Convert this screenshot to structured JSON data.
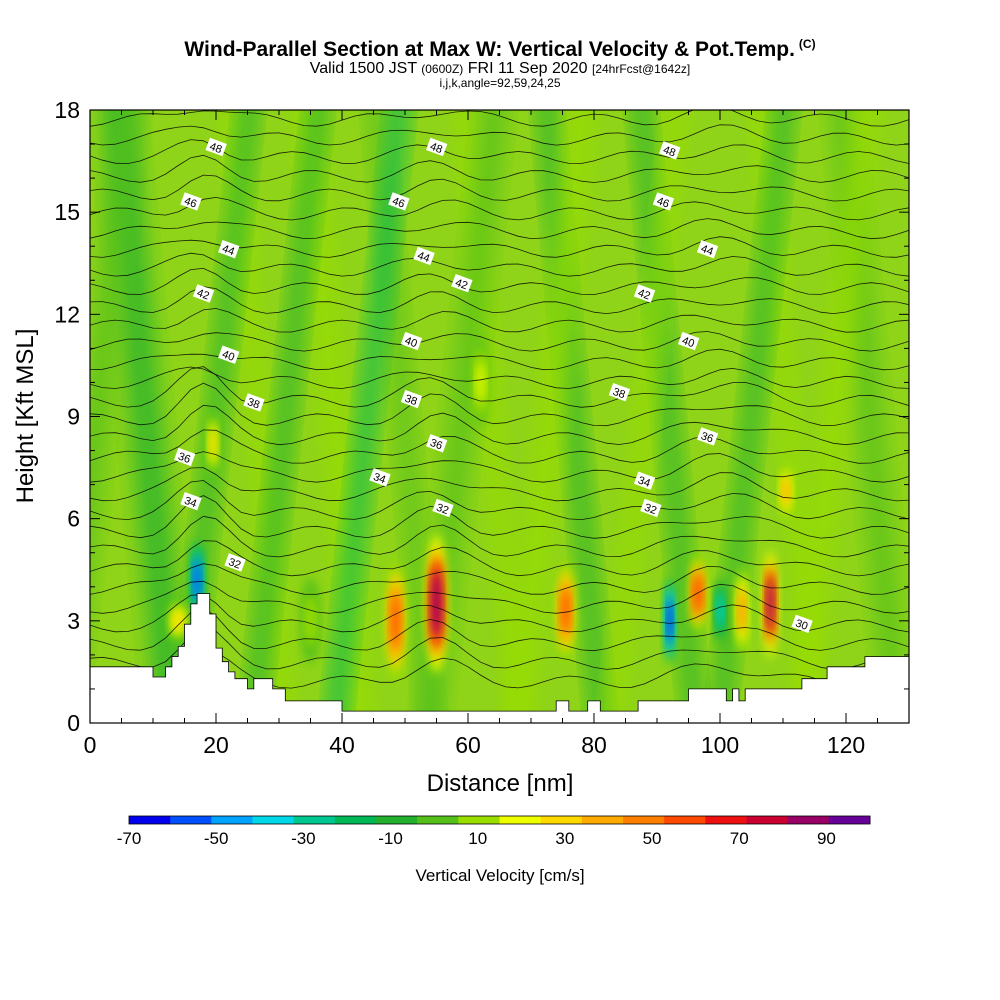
{
  "header": {
    "title": "Wind-Parallel Section at Max W: Vertical Velocity & Pot.Temp.",
    "copyright": "(C)",
    "valid_prefix": "Valid 1500 JST",
    "valid_utc": "(0600Z)",
    "valid_date": "FRI 11 Sep 2020",
    "forecast": "[24hrFcst@1642z]",
    "indices": "i,j,k,angle=92,59,24,25"
  },
  "chart_data": {
    "type": "contour",
    "xlabel": "Distance [nm]",
    "ylabel": "Height [Kft MSL]",
    "xlim": [
      0,
      130
    ],
    "ylim": [
      0,
      18
    ],
    "x_ticks": [
      0,
      20,
      40,
      60,
      80,
      100,
      120
    ],
    "y_ticks": [
      0,
      3,
      6,
      9,
      12,
      15,
      18
    ],
    "colorbar": {
      "label": "Vertical Velocity [cm/s]",
      "tick_labels": [
        "-70",
        "-50",
        "-30",
        "-10",
        "10",
        "30",
        "50",
        "70",
        "90"
      ],
      "levels": [
        -70,
        -60,
        -50,
        -40,
        -30,
        -20,
        -10,
        0,
        10,
        20,
        30,
        40,
        50,
        60,
        70,
        80,
        90,
        100
      ],
      "colors": [
        "#0000ee",
        "#0050ff",
        "#00a4ff",
        "#00d8e8",
        "#00c890",
        "#00b855",
        "#22b02e",
        "#55c01a",
        "#99dd00",
        "#eeff00",
        "#ffd800",
        "#ffaa00",
        "#ff8000",
        "#ff4800",
        "#ee1010",
        "#cc0030",
        "#990066",
        "#660099"
      ]
    },
    "theta_contours": {
      "quantity": "Potential temperature",
      "labels": [
        {
          "text": "48",
          "x": 20,
          "y": 16.9
        },
        {
          "text": "48",
          "x": 55,
          "y": 16.9
        },
        {
          "text": "48",
          "x": 92,
          "y": 16.8
        },
        {
          "text": "46",
          "x": 16,
          "y": 15.3
        },
        {
          "text": "46",
          "x": 49,
          "y": 15.3
        },
        {
          "text": "46",
          "x": 91,
          "y": 15.3
        },
        {
          "text": "44",
          "x": 22,
          "y": 13.9
        },
        {
          "text": "44",
          "x": 53,
          "y": 13.7
        },
        {
          "text": "44",
          "x": 98,
          "y": 13.9
        },
        {
          "text": "42",
          "x": 18,
          "y": 12.6
        },
        {
          "text": "42",
          "x": 59,
          "y": 12.9
        },
        {
          "text": "42",
          "x": 88,
          "y": 12.6
        },
        {
          "text": "40",
          "x": 22,
          "y": 10.8
        },
        {
          "text": "40",
          "x": 51,
          "y": 11.2
        },
        {
          "text": "40",
          "x": 95,
          "y": 11.2
        },
        {
          "text": "38",
          "x": 26,
          "y": 9.4
        },
        {
          "text": "38",
          "x": 51,
          "y": 9.5
        },
        {
          "text": "38",
          "x": 84,
          "y": 9.7
        },
        {
          "text": "36",
          "x": 15,
          "y": 7.8
        },
        {
          "text": "36",
          "x": 55,
          "y": 8.2
        },
        {
          "text": "36",
          "x": 98,
          "y": 8.4
        },
        {
          "text": "34",
          "x": 16,
          "y": 6.5
        },
        {
          "text": "34",
          "x": 46,
          "y": 7.2
        },
        {
          "text": "34",
          "x": 88,
          "y": 7.1
        },
        {
          "text": "32",
          "x": 23,
          "y": 4.7
        },
        {
          "text": "32",
          "x": 56,
          "y": 6.3
        },
        {
          "text": "32",
          "x": 89,
          "y": 6.3
        },
        {
          "text": "30",
          "x": 113,
          "y": 2.9
        }
      ]
    },
    "vertical_velocity_cells": [
      {
        "x": 17,
        "y": 4.2,
        "w": 1.5,
        "h": 1.8,
        "value": -55
      },
      {
        "x": 19.5,
        "y": 8.2,
        "w": 1.5,
        "h": 1.6,
        "value": 35
      },
      {
        "x": 14,
        "y": 3.0,
        "w": 2.5,
        "h": 1.0,
        "value": 30
      },
      {
        "x": 35,
        "y": 3.0,
        "w": 2.0,
        "h": 2.0,
        "value": 15
      },
      {
        "x": 48.5,
        "y": 3.0,
        "w": 2.3,
        "h": 2.8,
        "value": 62
      },
      {
        "x": 55,
        "y": 3.5,
        "w": 2.5,
        "h": 3.2,
        "value": 95
      },
      {
        "x": 62,
        "y": 10.0,
        "w": 2.0,
        "h": 2.0,
        "value": 25
      },
      {
        "x": 75.5,
        "y": 3.3,
        "w": 2.2,
        "h": 2.3,
        "value": 65
      },
      {
        "x": 92,
        "y": 3.0,
        "w": 1.2,
        "h": 2.0,
        "value": -60
      },
      {
        "x": 96.5,
        "y": 3.8,
        "w": 2.0,
        "h": 1.8,
        "value": 68
      },
      {
        "x": 100,
        "y": 3.3,
        "w": 1.2,
        "h": 1.5,
        "value": -35
      },
      {
        "x": 103.5,
        "y": 3.3,
        "w": 1.5,
        "h": 2.0,
        "value": 52
      },
      {
        "x": 108,
        "y": 3.5,
        "w": 1.6,
        "h": 2.5,
        "value": 95
      },
      {
        "x": 110.5,
        "y": 6.8,
        "w": 1.5,
        "h": 1.2,
        "value": 45
      }
    ],
    "terrain": [
      [
        0,
        1.65
      ],
      [
        10,
        1.65
      ],
      [
        10,
        1.35
      ],
      [
        12,
        1.35
      ],
      [
        12,
        1.65
      ],
      [
        13,
        1.65
      ],
      [
        13,
        1.95
      ],
      [
        14,
        1.95
      ],
      [
        14,
        2.25
      ],
      [
        15,
        2.25
      ],
      [
        15,
        2.9
      ],
      [
        16,
        2.9
      ],
      [
        16,
        3.5
      ],
      [
        17,
        3.5
      ],
      [
        17,
        3.8
      ],
      [
        19,
        3.8
      ],
      [
        19,
        3.2
      ],
      [
        20,
        3.2
      ],
      [
        20,
        2.2
      ],
      [
        21,
        2.2
      ],
      [
        21,
        1.8
      ],
      [
        22,
        1.8
      ],
      [
        22,
        1.5
      ],
      [
        23,
        1.5
      ],
      [
        23,
        1.3
      ],
      [
        25,
        1.3
      ],
      [
        25,
        1.0
      ],
      [
        26,
        1.0
      ],
      [
        26,
        1.3
      ],
      [
        29,
        1.3
      ],
      [
        29,
        1.0
      ],
      [
        31,
        1.0
      ],
      [
        31,
        0.65
      ],
      [
        40,
        0.65
      ],
      [
        40,
        0.35
      ],
      [
        42,
        0.35
      ],
      [
        42,
        0.35
      ],
      [
        74,
        0.35
      ],
      [
        74,
        0.65
      ],
      [
        76,
        0.65
      ],
      [
        76,
        0.35
      ],
      [
        79,
        0.35
      ],
      [
        79,
        0.65
      ],
      [
        81,
        0.65
      ],
      [
        81,
        0.35
      ],
      [
        87,
        0.35
      ],
      [
        87,
        0.65
      ],
      [
        95,
        0.65
      ],
      [
        95,
        1.0
      ],
      [
        101,
        1.0
      ],
      [
        101,
        0.65
      ],
      [
        102,
        0.65
      ],
      [
        102,
        1.0
      ],
      [
        103,
        1.0
      ],
      [
        103,
        0.65
      ],
      [
        104,
        0.65
      ],
      [
        104,
        1.0
      ],
      [
        110,
        1.0
      ],
      [
        110,
        1.0
      ],
      [
        113,
        1.0
      ],
      [
        113,
        1.3
      ],
      [
        117,
        1.3
      ],
      [
        117,
        1.65
      ],
      [
        123,
        1.65
      ],
      [
        123,
        1.95
      ],
      [
        130,
        1.95
      ]
    ]
  }
}
